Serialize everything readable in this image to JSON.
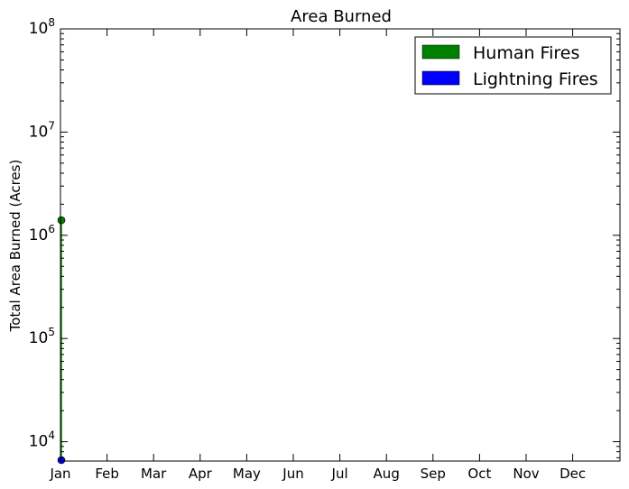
{
  "chart_data": {
    "type": "area",
    "title": "Area Burned",
    "xlabel": "",
    "ylabel": "Total Area Burned (Acres)",
    "y_scale": "log",
    "ylim": [
      6500,
      100000000
    ],
    "y_ticks": [
      {
        "value": 10000,
        "base": "10",
        "exp": "4"
      },
      {
        "value": 100000,
        "base": "10",
        "exp": "5"
      },
      {
        "value": 1000000,
        "base": "10",
        "exp": "6"
      },
      {
        "value": 10000000,
        "base": "10",
        "exp": "7"
      },
      {
        "value": 100000000,
        "base": "10",
        "exp": "8"
      }
    ],
    "categories": [
      "Jan",
      "Feb",
      "Mar",
      "Apr",
      "May",
      "Jun",
      "Jul",
      "Aug",
      "Sep",
      "Oct",
      "Nov",
      "Dec"
    ],
    "series": [
      {
        "name": "Human Fires",
        "color": "#008000",
        "x": [
          "Jan"
        ],
        "values": [
          1400000
        ]
      },
      {
        "name": "Lightning Fires",
        "color": "#0000ff",
        "x": [
          "Jan"
        ],
        "values": [
          6500
        ]
      }
    ],
    "legend": {
      "position": "top-right"
    },
    "grid": false
  }
}
